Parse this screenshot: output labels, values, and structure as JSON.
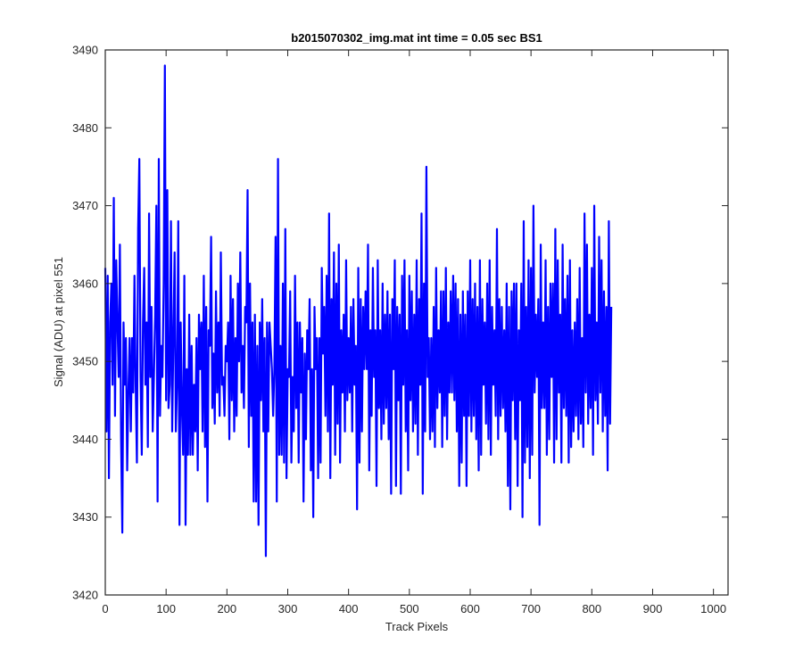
{
  "chart_data": {
    "type": "line",
    "title": "b2015070302_img.mat int time = 0.05 sec   BS1",
    "xlabel": "Track Pixels",
    "ylabel": "Signal (ADU) at pixel 551",
    "xlim": [
      0,
      1024
    ],
    "ylim": [
      3420,
      3490
    ],
    "xticks": [
      0,
      100,
      200,
      300,
      400,
      500,
      600,
      700,
      800,
      900,
      1000
    ],
    "yticks": [
      3420,
      3430,
      3440,
      3450,
      3460,
      3470,
      3480,
      3490
    ],
    "grid": false,
    "legend": "none",
    "series": [
      {
        "color": "#0000ff",
        "x_start": 0,
        "x_step": 2,
        "values": [
          3462,
          3441,
          3461,
          3435,
          3455,
          3460,
          3447,
          3471,
          3443,
          3463,
          3455,
          3448,
          3465,
          3440,
          3428,
          3455,
          3447,
          3453,
          3436,
          3446,
          3453,
          3441,
          3453,
          3446,
          3461,
          3447,
          3437,
          3467,
          3476,
          3448,
          3438,
          3455,
          3462,
          3447,
          3455,
          3439,
          3469,
          3448,
          3457,
          3441,
          3448,
          3456,
          3470,
          3432,
          3476,
          3443,
          3452,
          3448,
          3460,
          3488,
          3445,
          3472,
          3444,
          3447,
          3468,
          3441,
          3453,
          3464,
          3441,
          3447,
          3468,
          3429,
          3455,
          3444,
          3438,
          3461,
          3429,
          3449,
          3438,
          3456,
          3438,
          3452,
          3438,
          3447,
          3441,
          3453,
          3436,
          3456,
          3449,
          3455,
          3441,
          3461,
          3439,
          3457,
          3432,
          3454,
          3452,
          3466,
          3444,
          3451,
          3442,
          3459,
          3446,
          3455,
          3443,
          3464,
          3447,
          3448,
          3443,
          3452,
          3450,
          3455,
          3440,
          3461,
          3445,
          3458,
          3441,
          3453,
          3443,
          3460,
          3450,
          3464,
          3446,
          3452,
          3444,
          3457,
          3455,
          3472,
          3439,
          3460,
          3443,
          3455,
          3432,
          3456,
          3432,
          3452,
          3429,
          3455,
          3445,
          3458,
          3441,
          3453,
          3425,
          3455,
          3441,
          3455,
          3452,
          3449,
          3443,
          3449,
          3466,
          3432,
          3476,
          3438,
          3452,
          3438,
          3460,
          3437,
          3467,
          3435,
          3449,
          3448,
          3459,
          3437,
          3448,
          3441,
          3461,
          3444,
          3455,
          3437,
          3455,
          3446,
          3453,
          3432,
          3451,
          3440,
          3454,
          3449,
          3458,
          3436,
          3449,
          3430,
          3457,
          3449,
          3453,
          3435,
          3453,
          3437,
          3462,
          3451,
          3457,
          3443,
          3461,
          3441,
          3469,
          3435,
          3458,
          3447,
          3464,
          3438,
          3460,
          3442,
          3465,
          3437,
          3454,
          3446,
          3456,
          3441,
          3463,
          3445,
          3453,
          3446,
          3457,
          3441,
          3458,
          3447,
          3452,
          3431,
          3462,
          3437,
          3458,
          3441,
          3457,
          3449,
          3459,
          3449,
          3465,
          3436,
          3454,
          3443,
          3462,
          3448,
          3454,
          3434,
          3463,
          3444,
          3454,
          3440,
          3460,
          3442,
          3456,
          3444,
          3459,
          3440,
          3456,
          3433,
          3458,
          3449,
          3463,
          3434,
          3457,
          3445,
          3456,
          3433,
          3461,
          3447,
          3463,
          3441,
          3454,
          3436,
          3461,
          3445,
          3459,
          3441,
          3456,
          3442,
          3463,
          3438,
          3458,
          3447,
          3469,
          3433,
          3460,
          3441,
          3475,
          3448,
          3453,
          3440,
          3453,
          3441,
          3457,
          3439,
          3462,
          3444,
          3454,
          3446,
          3459,
          3439,
          3459,
          3443,
          3462,
          3440,
          3455,
          3446,
          3459,
          3446,
          3461,
          3445,
          3460,
          3441,
          3458,
          3434,
          3456,
          3437,
          3459,
          3443,
          3456,
          3434,
          3459,
          3443,
          3463,
          3441,
          3458,
          3443,
          3460,
          3440,
          3457,
          3436,
          3463,
          3438,
          3458,
          3447,
          3455,
          3442,
          3460,
          3440,
          3463,
          3438,
          3457,
          3447,
          3454,
          3443,
          3467,
          3440,
          3458,
          3443,
          3457,
          3444,
          3454,
          3441,
          3460,
          3434,
          3457,
          3431,
          3459,
          3445,
          3460,
          3440,
          3460,
          3434,
          3454,
          3445,
          3460,
          3430,
          3468,
          3437,
          3457,
          3439,
          3463,
          3435,
          3462,
          3438,
          3470,
          3446,
          3456,
          3448,
          3458,
          3429,
          3465,
          3444,
          3455,
          3444,
          3463,
          3438,
          3457,
          3440,
          3460,
          3448,
          3460,
          3437,
          3467,
          3440,
          3463,
          3446,
          3456,
          3437,
          3465,
          3444,
          3458,
          3443,
          3461,
          3437,
          3463,
          3439,
          3454,
          3441,
          3455,
          3443,
          3458,
          3440,
          3462,
          3442,
          3453,
          3439,
          3469,
          3446,
          3465,
          3442,
          3456,
          3444,
          3462,
          3438,
          3470,
          3445,
          3455,
          3442,
          3466,
          3446,
          3463,
          3441,
          3459,
          3443,
          3457,
          3436,
          3468,
          3442,
          3457
        ]
      }
    ]
  }
}
